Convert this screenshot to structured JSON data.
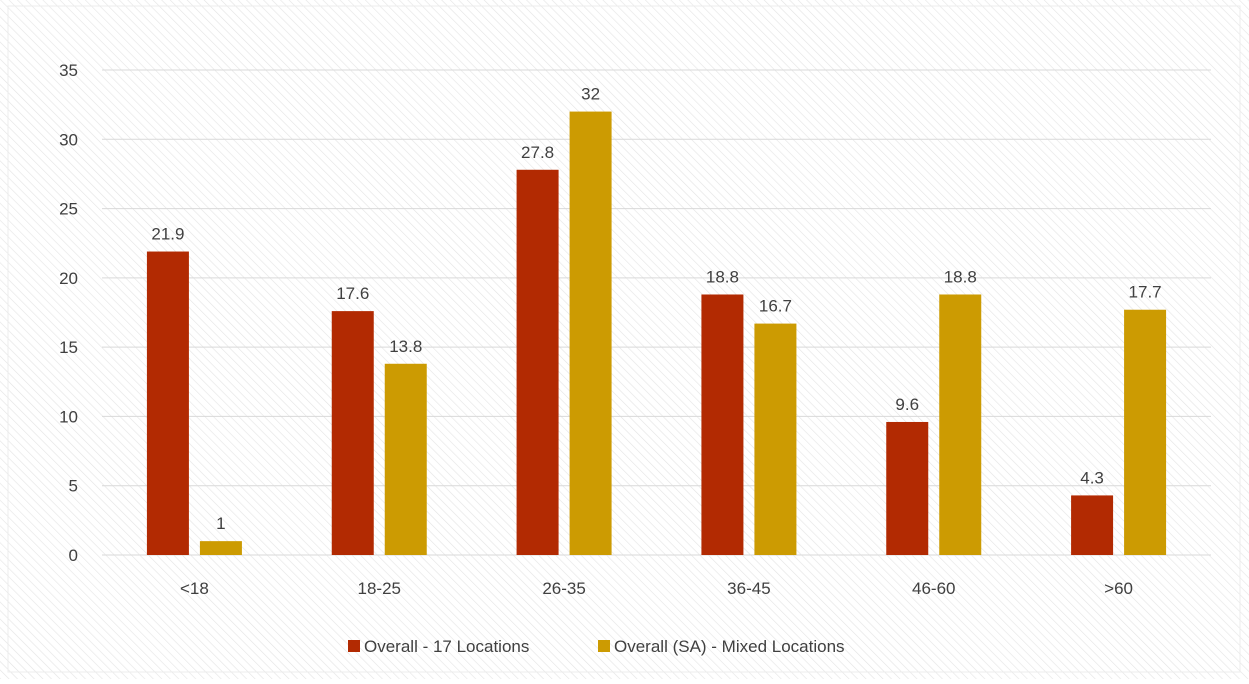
{
  "chart_data": {
    "type": "bar",
    "title": "",
    "xlabel": "",
    "ylabel": "",
    "categories": [
      "<18",
      "18-25",
      "26-35",
      "36-45",
      "46-60",
      ">60"
    ],
    "series": [
      {
        "name": "Overall - 17 Locations",
        "values": [
          21.9,
          17.6,
          27.8,
          18.8,
          9.6,
          4.3
        ],
        "color": "#B22A02"
      },
      {
        "name": "Overall (SA) - Mixed Locations",
        "values": [
          1,
          13.8,
          32,
          16.7,
          18.8,
          17.7
        ],
        "color": "#CC9B02"
      }
    ],
    "ylim": [
      0,
      35
    ],
    "yticks": [
      0,
      5,
      10,
      15,
      20,
      25,
      30,
      35
    ],
    "data_labels": true,
    "grid": true,
    "legend": "bottom-center",
    "background_pattern": "diagonal-hatch",
    "gridline_color": "#D9D9D9",
    "text_color": "#404040"
  }
}
